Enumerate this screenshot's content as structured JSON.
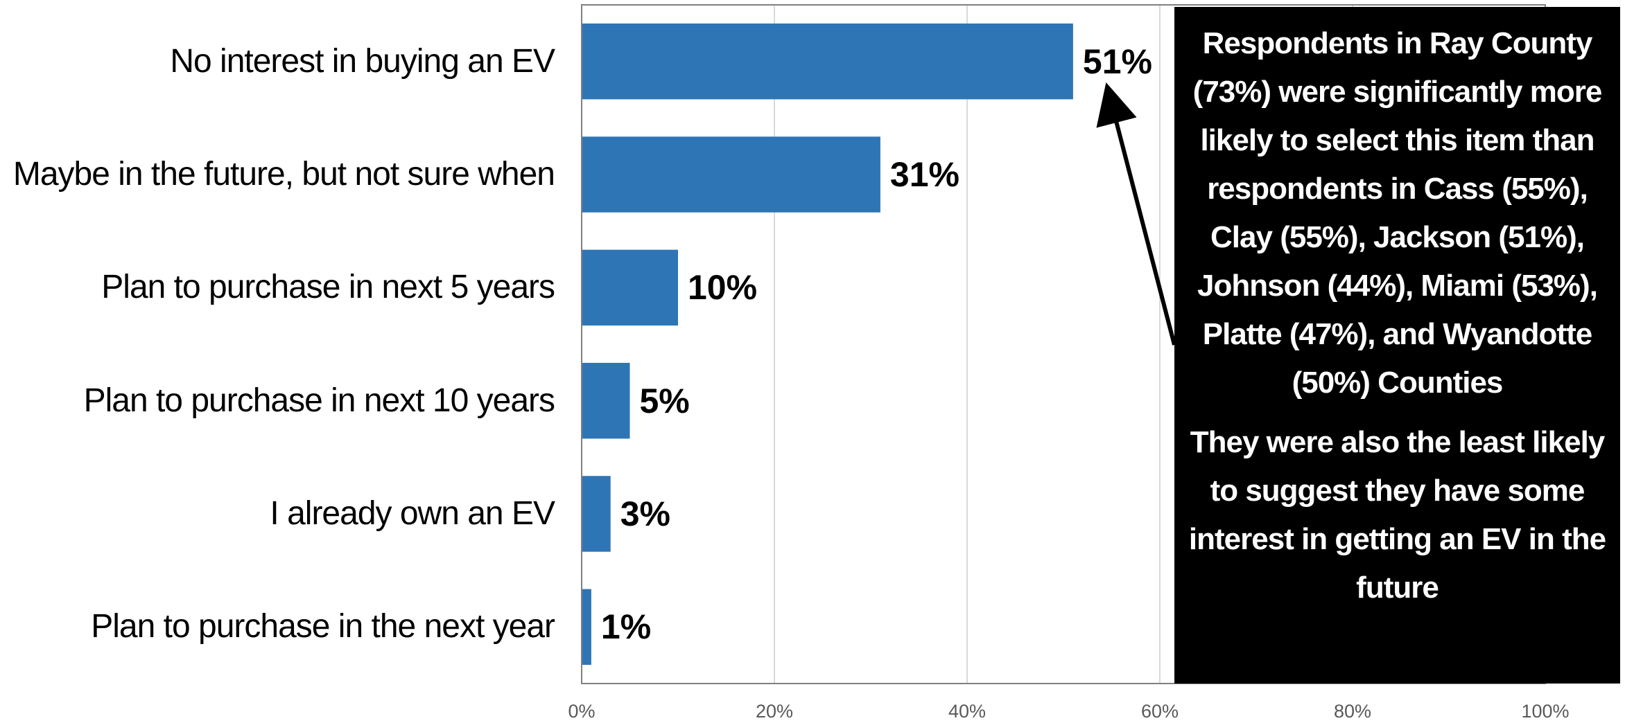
{
  "chart_data": {
    "type": "bar",
    "orientation": "horizontal",
    "categories": [
      "No interest in buying an EV",
      "Maybe in the future, but not sure when",
      "Plan to purchase in next 5 years",
      "Plan to purchase in next 10 years",
      "I already own an EV",
      "Plan to purchase in the next year"
    ],
    "values": [
      51,
      31,
      10,
      5,
      3,
      1
    ],
    "value_labels": [
      "51%",
      "31%",
      "10%",
      "5%",
      "3%",
      "1%"
    ],
    "color": "#2e75b6",
    "xlim": [
      0,
      100
    ],
    "xticks": [
      {
        "value": 0,
        "label": "0%"
      },
      {
        "value": 20,
        "label": "20%"
      },
      {
        "value": 40,
        "label": "40%"
      },
      {
        "value": 60,
        "label": "60%"
      },
      {
        "value": 80,
        "label": "80%"
      },
      {
        "value": 100,
        "label": "100%"
      }
    ],
    "grid": true,
    "annotations": [
      "Respondents in Ray County (73%) were significantly more likely to select this item than respondents in Cass (55%), Clay (55%), Jackson (51%), Johnson (44%), Miami (53%), Platte (47%), and Wyandotte (50%) Counties",
      "They were also the least likely to suggest they have some interest in getting an EV in the future"
    ]
  }
}
